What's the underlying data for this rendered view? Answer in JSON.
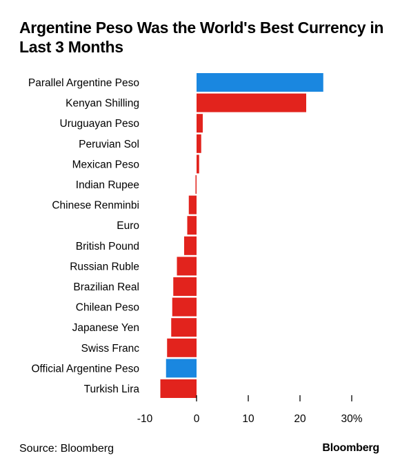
{
  "title": "Argentine Peso Was the World's Best Currency in Last 3 Months",
  "source": "Source: Bloomberg",
  "brand": "Bloomberg",
  "colors": {
    "highlight": "#1a87e0",
    "default": "#e2231d",
    "axis": "#000000"
  },
  "chart_data": {
    "type": "bar",
    "orientation": "horizontal",
    "title": "Argentine Peso Was the World's Best Currency in Last 3 Months",
    "xlabel": "",
    "ylabel": "",
    "xlim": [
      -10,
      30
    ],
    "x_ticks": [
      -10,
      0,
      10,
      20,
      30
    ],
    "x_tick_labels": [
      "-10",
      "0",
      "10",
      "20",
      "30%"
    ],
    "grid": false,
    "categories": [
      "Parallel Argentine Peso",
      "Kenyan Shilling",
      "Uruguayan Peso",
      "Peruvian Sol",
      "Mexican Peso",
      "Indian Rupee",
      "Chinese Renminbi",
      "Euro",
      "British Pound",
      "Russian Ruble",
      "Brazilian Real",
      "Chilean Peso",
      "Japanese Yen",
      "Swiss Franc",
      "Official Argentine Peso",
      "Turkish Lira"
    ],
    "values": [
      24.5,
      21.2,
      1.2,
      0.9,
      0.5,
      -0.2,
      -1.5,
      -1.8,
      -2.4,
      -3.8,
      -4.5,
      -4.7,
      -4.9,
      -5.7,
      -5.9,
      -7.0
    ],
    "highlighted": [
      "Parallel Argentine Peso",
      "Official Argentine Peso"
    ]
  }
}
